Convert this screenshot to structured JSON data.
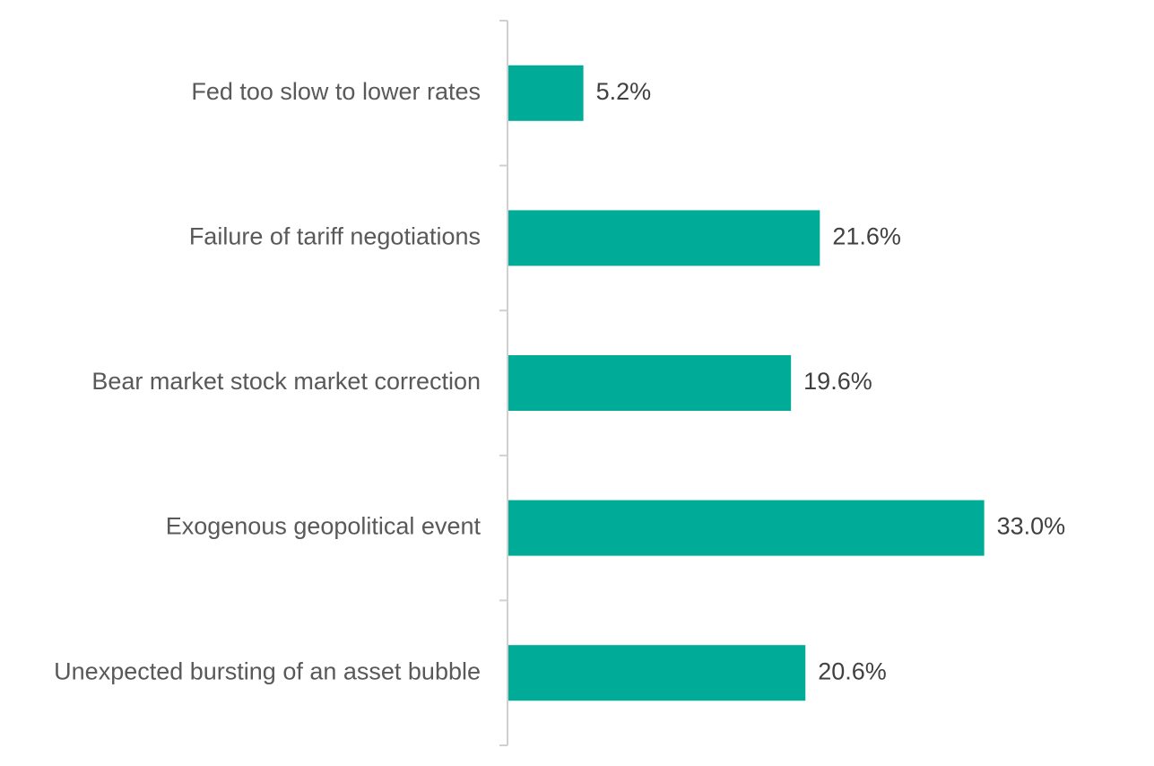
{
  "chart_data": {
    "type": "bar",
    "orientation": "horizontal",
    "categories": [
      "Fed too slow to lower rates",
      "Failure of tariff negotiations",
      "Bear market stock market correction",
      "Exogenous geopolitical event",
      "Unexpected bursting of an asset bubble"
    ],
    "values": [
      5.2,
      21.6,
      19.6,
      33.0,
      20.6
    ],
    "value_labels": [
      "5.2%",
      "21.6%",
      "19.6%",
      "33.0%",
      "20.6%"
    ],
    "unit": "%",
    "title": "",
    "xlabel": "",
    "ylabel": "",
    "xlim": [
      0,
      35
    ],
    "grid": false,
    "legend": "none",
    "colors": {
      "bar": "#00AB98",
      "axis": "#d0d0d0",
      "category_text": "#595959",
      "value_text": "#404040"
    }
  }
}
